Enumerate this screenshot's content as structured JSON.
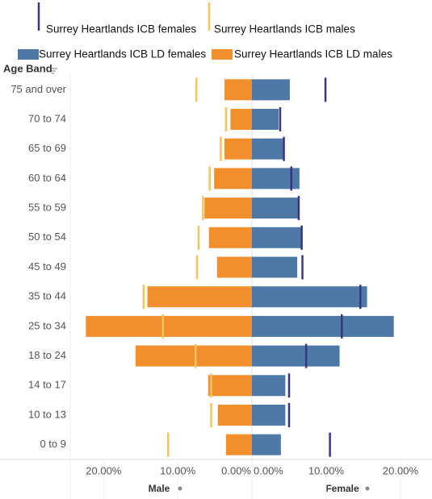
{
  "chart_data": {
    "type": "pyramid",
    "y_axis_title": "Age Band",
    "categories": [
      "75 and over",
      "70 to 74",
      "65 to 69",
      "60 to 64",
      "55 to 59",
      "50 to 54",
      "45 to 49",
      "35 to 44",
      "25 to 34",
      "18 to 24",
      "14 to 17",
      "10 to 13",
      "0 to 9"
    ],
    "panels": [
      {
        "label": "Male",
        "xlim": [
          0,
          24.5
        ],
        "xticks": [
          {
            "value": 20,
            "label": "20.00%"
          },
          {
            "value": 10,
            "label": "10.00%"
          },
          {
            "value": 0,
            "label": "0.00%"
          }
        ]
      },
      {
        "label": "Female",
        "xlim": [
          0,
          23.7
        ],
        "xticks": [
          {
            "value": 0,
            "label": "0.00%"
          },
          {
            "value": 10,
            "label": "10.00%"
          },
          {
            "value": 20,
            "label": "20.00%"
          }
        ]
      }
    ],
    "series": [
      {
        "name": "Surrey Heartlands ICB females",
        "color": "#39357f",
        "panel": 1,
        "style": "line",
        "values": [
          9.9,
          3.8,
          4.3,
          5.3,
          6.3,
          6.7,
          6.8,
          14.6,
          12.1,
          7.3,
          5.0,
          5.0,
          10.5
        ]
      },
      {
        "name": "Surrey Heartlands ICB males",
        "color": "#f7c35f",
        "panel": 0,
        "style": "line",
        "values": [
          7.5,
          3.5,
          4.2,
          5.7,
          6.6,
          7.2,
          7.4,
          14.6,
          12.0,
          7.6,
          5.5,
          5.5,
          11.3
        ]
      },
      {
        "name": "Surrey Heartlands ICB LD females",
        "color": "#4e79a7",
        "panel": 1,
        "style": "bar",
        "values": [
          5.1,
          3.6,
          4.2,
          6.4,
          6.2,
          6.6,
          6.1,
          15.5,
          19.1,
          11.8,
          4.5,
          4.5,
          3.9
        ]
      },
      {
        "name": "Surrey Heartlands ICB LD males",
        "color": "#f28e2b",
        "panel": 0,
        "style": "bar",
        "values": [
          3.7,
          2.9,
          3.7,
          5.1,
          6.4,
          5.8,
          4.7,
          14.1,
          22.4,
          15.7,
          5.9,
          4.6,
          3.5
        ]
      }
    ]
  }
}
